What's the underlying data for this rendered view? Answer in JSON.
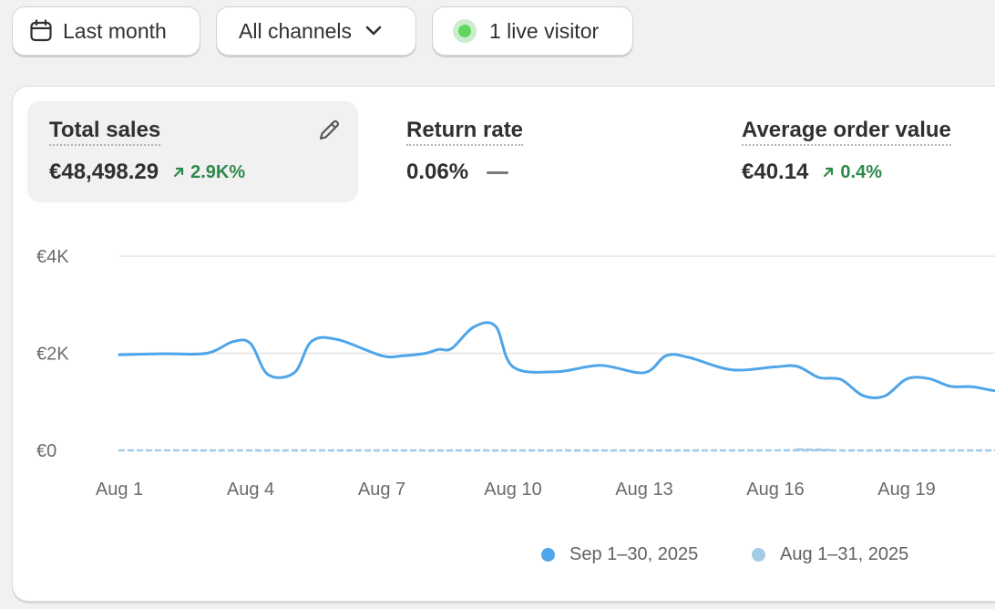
{
  "toolbar": {
    "date_label": "Last month",
    "date_icon": "calendar-icon",
    "channels_label": "All channels",
    "channels_icon": "chevron-down-icon",
    "live_label": "1 live visitor",
    "live_color": "#5fd75f"
  },
  "metrics": [
    {
      "title": "Total sales",
      "value": "€48,498.29",
      "change": "2.9K%",
      "trend": "up",
      "selected": true
    },
    {
      "title": "Return rate",
      "value": "0.06%",
      "change": "",
      "trend": "none",
      "selected": false
    },
    {
      "title": "Average order value",
      "value": "€40.14",
      "change": "0.4%",
      "trend": "up",
      "selected": false
    }
  ],
  "colors": {
    "current_series": "#4ea5e9",
    "previous_series": "#a4cbe6",
    "positive_change": "#2d8a4a"
  },
  "chart_data": {
    "type": "line",
    "x_tick_labels": [
      "Aug 1",
      "Aug 4",
      "Aug 7",
      "Aug 10",
      "Aug 13",
      "Aug 16",
      "Aug 19"
    ],
    "y_tick_labels": [
      "€4K",
      "€2K",
      "€0"
    ],
    "ylim": [
      0,
      4000
    ],
    "grid": true,
    "legend_position": "bottom-right",
    "series": [
      {
        "name": "Sep 1–30, 2025",
        "style": "solid",
        "x": [
          1,
          2,
          3,
          3.6,
          4,
          4.4,
          5,
          5.4,
          6,
          7,
          7.5,
          8,
          8.3,
          8.6,
          9.1,
          9.6,
          10,
          11,
          12,
          13,
          13.5,
          14,
          15,
          16,
          16.5,
          17,
          17.5,
          18,
          18.5,
          19,
          19.5,
          20,
          20.5,
          21,
          21.5,
          22
        ],
        "values": [
          1970,
          1990,
          2000,
          2240,
          2200,
          1560,
          1600,
          2250,
          2280,
          1950,
          1950,
          2000,
          2080,
          2100,
          2540,
          2560,
          1720,
          1620,
          1750,
          1600,
          1950,
          1920,
          1660,
          1720,
          1730,
          1500,
          1460,
          1130,
          1120,
          1470,
          1480,
          1320,
          1310,
          1230,
          1200,
          1190
        ]
      },
      {
        "name": "Aug 1–31, 2025",
        "style": "dashed",
        "x": [
          1,
          16,
          16.5,
          17,
          22
        ],
        "values": [
          0,
          0,
          20,
          0,
          0
        ]
      }
    ]
  }
}
